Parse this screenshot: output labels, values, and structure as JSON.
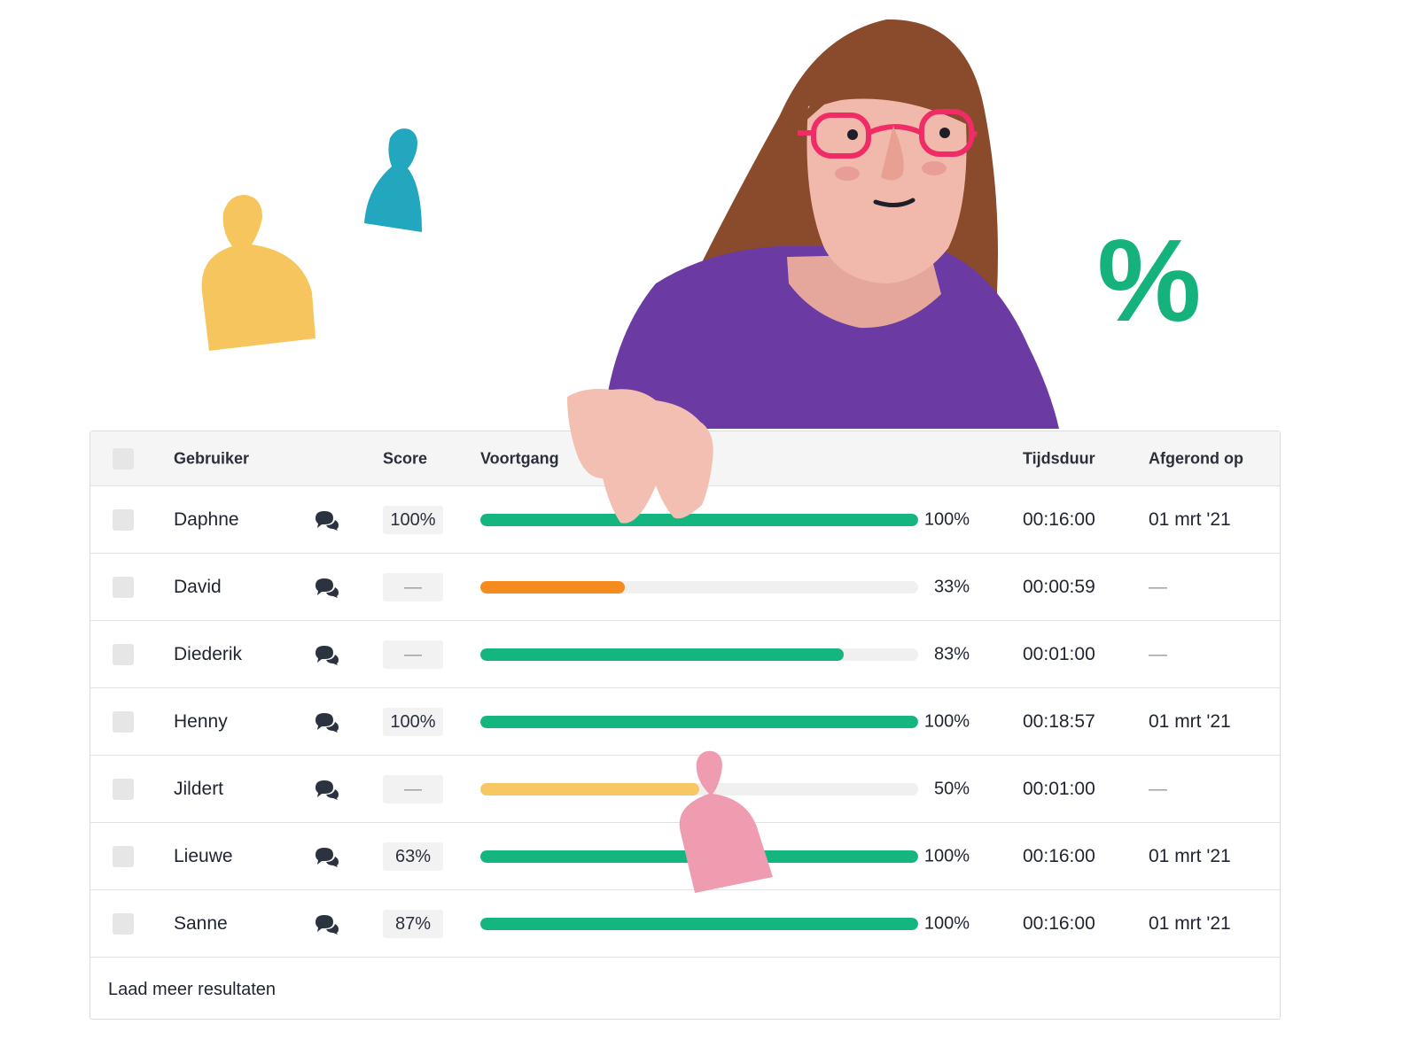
{
  "colors": {
    "green": "#14b57e",
    "orange": "#f58a1f",
    "yellow": "#f7c764",
    "track": "#f0f0f0"
  },
  "illustration": {
    "percent_symbol": "%"
  },
  "table": {
    "columns": {
      "user": "Gebruiker",
      "score": "Score",
      "progress": "Voortgang",
      "duration": "Tijdsduur",
      "completed": "Afgerond op"
    },
    "rows": [
      {
        "name": "Daphne",
        "chat_icon": "chat-bubbles-icon",
        "score": "100%",
        "progress": 1.0,
        "progress_label": "100%",
        "bar_color": "#14b57e",
        "duration": "00:16:00",
        "completed": "01 mrt '21"
      },
      {
        "name": "David",
        "chat_icon": "chat-bubbles-icon",
        "score": "—",
        "progress": 0.33,
        "progress_label": "33%",
        "bar_color": "#f58a1f",
        "duration": "00:00:59",
        "completed": "—"
      },
      {
        "name": "Diederik",
        "chat_icon": "chat-bubbles-icon",
        "score": "—",
        "progress": 0.83,
        "progress_label": "83%",
        "bar_color": "#14b57e",
        "duration": "00:01:00",
        "completed": "—"
      },
      {
        "name": "Henny",
        "chat_icon": "chat-bubbles-icon",
        "score": "100%",
        "progress": 1.0,
        "progress_label": "100%",
        "bar_color": "#14b57e",
        "duration": "00:18:57",
        "completed": "01 mrt '21"
      },
      {
        "name": "Jildert",
        "chat_icon": "chat-bubbles-icon",
        "score": "—",
        "progress": 0.5,
        "progress_label": "50%",
        "bar_color": "#f7c764",
        "duration": "00:01:00",
        "completed": "—"
      },
      {
        "name": "Lieuwe",
        "chat_icon": "chat-bubbles-icon",
        "score": "63%",
        "progress": 1.0,
        "progress_label": "100%",
        "bar_color": "#14b57e",
        "duration": "00:16:00",
        "completed": "01 mrt '21"
      },
      {
        "name": "Sanne",
        "chat_icon": "chat-bubbles-icon",
        "score": "87%",
        "progress": 1.0,
        "progress_label": "100%",
        "bar_color": "#14b57e",
        "duration": "00:16:00",
        "completed": "01 mrt '21"
      }
    ],
    "load_more": "Laad meer resultaten"
  }
}
